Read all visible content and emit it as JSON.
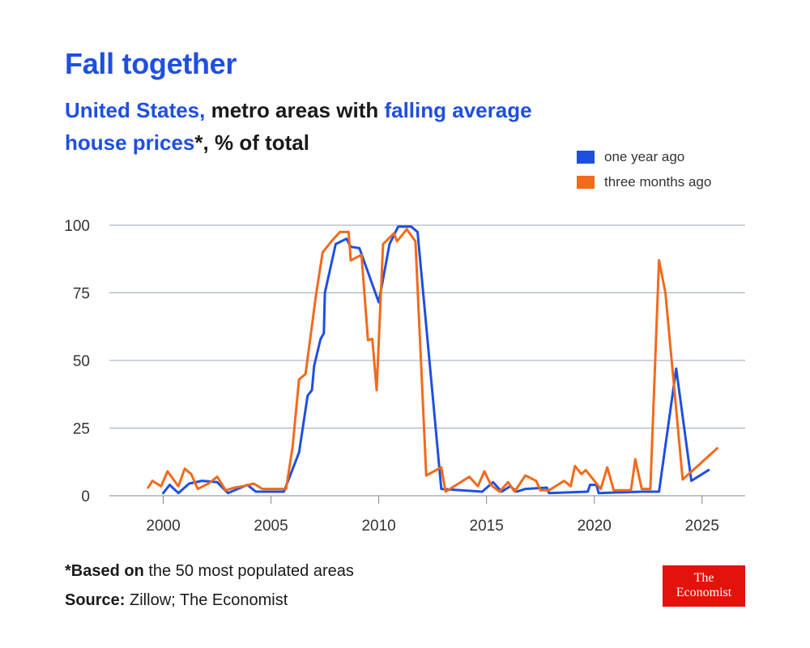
{
  "title": "Fall together",
  "subtitle": {
    "part1": "United States,",
    "part2": " metro areas with ",
    "part3": "falling average house prices",
    "part4": "*, % of total"
  },
  "legend": {
    "series1": "one year ago",
    "series2": "three months ago"
  },
  "footnote": {
    "bold": "*Based on",
    "text": " the 50 most populated areas"
  },
  "source": {
    "bold": "Source:",
    "text": " Zillow; The Economist"
  },
  "logo": {
    "line1": "The",
    "line2": "Economist"
  },
  "chart_data": {
    "type": "line",
    "xlim": [
      1997.5,
      2027.0
    ],
    "ylim": [
      0,
      100
    ],
    "x_ticks": [
      2000,
      2005,
      2010,
      2015,
      2020,
      2025
    ],
    "y_ticks": [
      0,
      25,
      50,
      75,
      100
    ],
    "grid": "horizontal",
    "legend_position": "top-right",
    "series": [
      {
        "name": "one year ago",
        "color": "#1f4fe0",
        "points": [
          [
            2000.0,
            1
          ],
          [
            2000.3,
            4
          ],
          [
            2000.7,
            1
          ],
          [
            2001.2,
            4.5
          ],
          [
            2001.8,
            5.5
          ],
          [
            2002.5,
            5
          ],
          [
            2003.0,
            1
          ],
          [
            2003.9,
            4
          ],
          [
            2004.3,
            1.5
          ],
          [
            2005.0,
            1.5
          ],
          [
            2005.6,
            1.5
          ],
          [
            2006.3,
            16
          ],
          [
            2006.7,
            37
          ],
          [
            2006.9,
            39
          ],
          [
            2007.0,
            48
          ],
          [
            2007.3,
            58
          ],
          [
            2007.45,
            60
          ],
          [
            2007.5,
            75
          ],
          [
            2008.0,
            93
          ],
          [
            2008.5,
            95
          ],
          [
            2008.7,
            92
          ],
          [
            2009.1,
            91.5
          ],
          [
            2010.0,
            71.5
          ],
          [
            2010.5,
            93
          ],
          [
            2010.9,
            99.5
          ],
          [
            2011.5,
            99.5
          ],
          [
            2011.8,
            97.5
          ],
          [
            2012.9,
            2.5
          ],
          [
            2014.8,
            1.5
          ],
          [
            2015.3,
            5
          ],
          [
            2015.7,
            1.5
          ],
          [
            2016.1,
            3.5
          ],
          [
            2016.4,
            1.5
          ],
          [
            2016.8,
            2.5
          ],
          [
            2017.8,
            3
          ],
          [
            2017.9,
            1
          ],
          [
            2019.7,
            1.5
          ],
          [
            2019.8,
            4
          ],
          [
            2020.1,
            4
          ],
          [
            2020.2,
            1
          ],
          [
            2022.2,
            1.5
          ],
          [
            2023.0,
            1.5
          ],
          [
            2023.8,
            47
          ],
          [
            2024.5,
            5.5
          ],
          [
            2025.3,
            9.5
          ]
        ]
      },
      {
        "name": "three months ago",
        "color": "#f26a1b",
        "points": [
          [
            1999.3,
            3
          ],
          [
            1999.5,
            5.5
          ],
          [
            1999.9,
            3.5
          ],
          [
            2000.2,
            9
          ],
          [
            2000.7,
            3.5
          ],
          [
            2001.0,
            10
          ],
          [
            2001.3,
            8
          ],
          [
            2001.6,
            2.5
          ],
          [
            2002.1,
            4.5
          ],
          [
            2002.5,
            7
          ],
          [
            2002.9,
            2
          ],
          [
            2003.3,
            3
          ],
          [
            2003.7,
            3.5
          ],
          [
            2004.2,
            4.5
          ],
          [
            2004.6,
            2.5
          ],
          [
            2005.0,
            2.5
          ],
          [
            2005.7,
            2.5
          ],
          [
            2006.0,
            18
          ],
          [
            2006.3,
            43
          ],
          [
            2006.6,
            45
          ],
          [
            2007.1,
            75
          ],
          [
            2007.4,
            90
          ],
          [
            2007.8,
            94
          ],
          [
            2008.2,
            97.5
          ],
          [
            2008.6,
            97.5
          ],
          [
            2008.7,
            87
          ],
          [
            2009.2,
            89
          ],
          [
            2009.5,
            57.5
          ],
          [
            2009.7,
            58
          ],
          [
            2009.9,
            39
          ],
          [
            2010.2,
            93
          ],
          [
            2010.7,
            97
          ],
          [
            2010.85,
            94
          ],
          [
            2011.3,
            98.5
          ],
          [
            2011.7,
            94
          ],
          [
            2012.2,
            7.5
          ],
          [
            2012.9,
            10.5
          ],
          [
            2013.1,
            1.5
          ],
          [
            2013.6,
            4
          ],
          [
            2014.2,
            7
          ],
          [
            2014.6,
            3.5
          ],
          [
            2014.9,
            9
          ],
          [
            2015.2,
            4
          ],
          [
            2015.6,
            1.5
          ],
          [
            2016.0,
            5
          ],
          [
            2016.3,
            1.5
          ],
          [
            2016.8,
            7.5
          ],
          [
            2017.3,
            5.5
          ],
          [
            2017.5,
            2
          ],
          [
            2017.9,
            2
          ],
          [
            2018.6,
            5.5
          ],
          [
            2018.9,
            3.5
          ],
          [
            2019.1,
            11
          ],
          [
            2019.4,
            8
          ],
          [
            2019.6,
            9.5
          ],
          [
            2020.3,
            2.5
          ],
          [
            2020.6,
            10.5
          ],
          [
            2020.9,
            2
          ],
          [
            2021.7,
            2
          ],
          [
            2021.9,
            13.5
          ],
          [
            2022.2,
            2.5
          ],
          [
            2022.6,
            2.5
          ],
          [
            2023.0,
            87
          ],
          [
            2023.3,
            75
          ],
          [
            2024.1,
            6
          ],
          [
            2025.7,
            17.5
          ]
        ]
      }
    ]
  }
}
